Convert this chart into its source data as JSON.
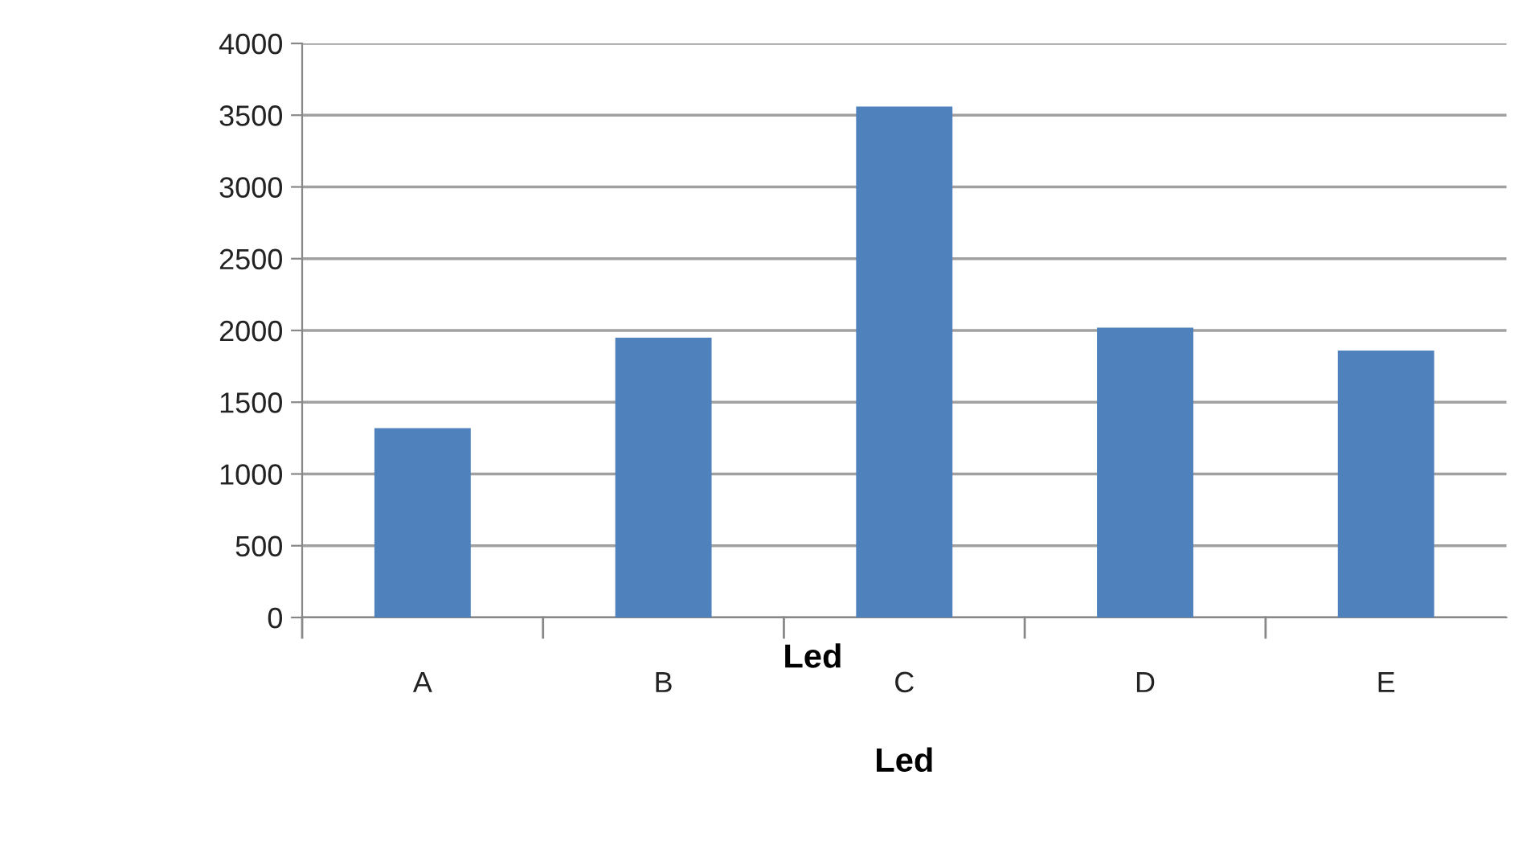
{
  "chart_data": {
    "type": "bar",
    "xlabel": "Led",
    "categories": [
      "A",
      "B",
      "C",
      "D",
      "E"
    ],
    "values": [
      1320,
      1950,
      3560,
      2020,
      1860
    ],
    "color": "#4f81bd",
    "ylim": [
      0,
      4000
    ],
    "yticks": [
      0,
      500,
      1000,
      1500,
      2000,
      2500,
      3000,
      3500,
      4000
    ],
    "grid": "y",
    "annotations": [
      "Led"
    ]
  }
}
